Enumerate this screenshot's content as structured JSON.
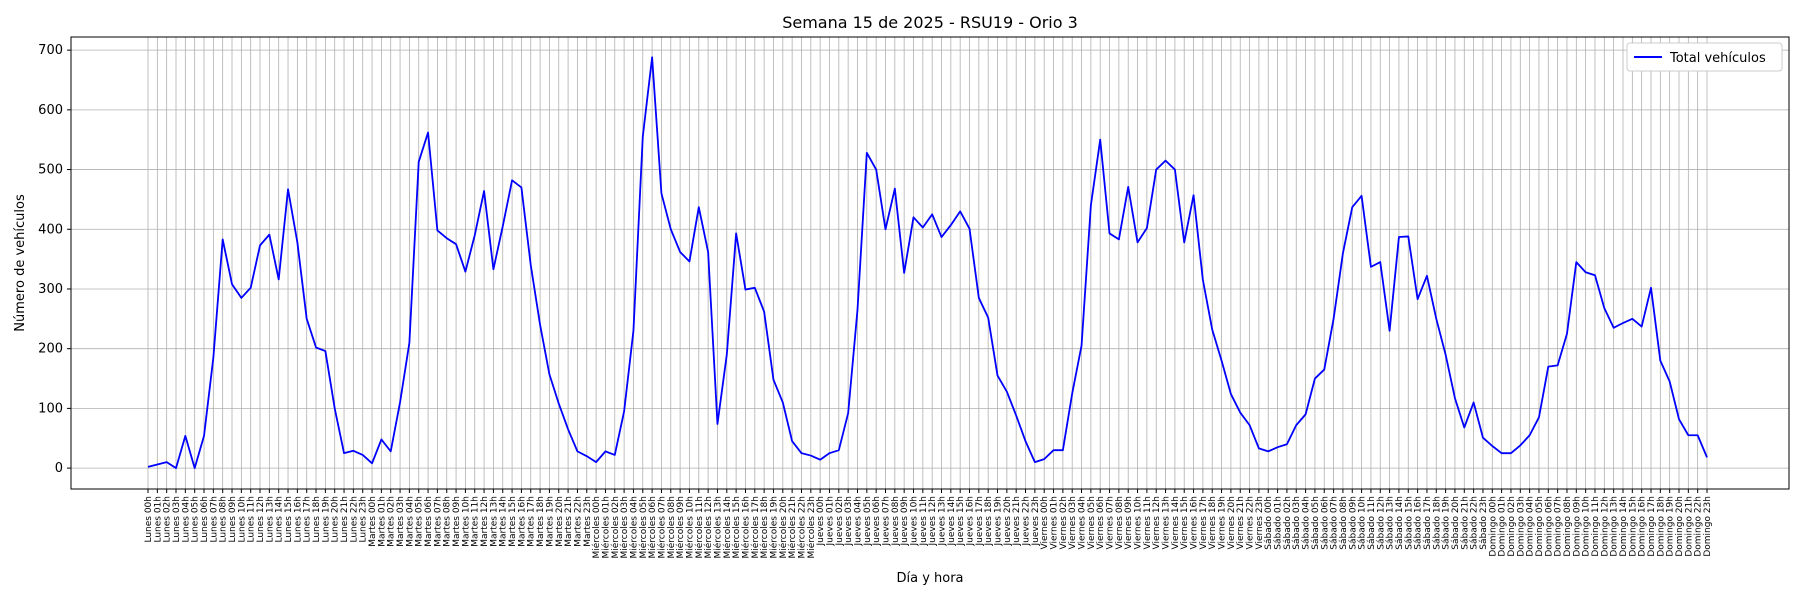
{
  "chart_data": {
    "type": "line",
    "title": "Semana 15 de 2025 - RSU19 - Orio 3",
    "xlabel": "Día y hora",
    "ylabel": "Número de vehículos",
    "ylim": [
      -35,
      722
    ],
    "yticks": [
      0,
      100,
      200,
      300,
      400,
      500,
      600,
      700
    ],
    "grid": true,
    "legend_position": "top-right",
    "days": [
      "Lunes",
      "Martes",
      "Miércoles",
      "Jueves",
      "Viernes",
      "Sábado",
      "Domingo"
    ],
    "hour_labels": [
      "00h",
      "01h",
      "02h",
      "03h",
      "04h",
      "05h",
      "06h",
      "07h",
      "08h",
      "09h",
      "10h",
      "11h",
      "12h",
      "13h",
      "14h",
      "15h",
      "16h",
      "17h",
      "18h",
      "19h",
      "20h",
      "21h",
      "22h",
      "23h"
    ],
    "series": [
      {
        "name": "Total vehículos",
        "color": "#0000ff",
        "values": [
          2,
          6,
          10,
          0,
          54,
          0,
          54,
          185,
          383,
          308,
          285,
          302,
          373,
          391,
          316,
          467,
          378,
          250,
          202,
          196,
          100,
          25,
          29,
          22,
          8,
          48,
          28,
          110,
          210,
          513,
          562,
          398,
          385,
          375,
          329,
          390,
          464,
          333,
          405,
          482,
          470,
          340,
          240,
          157,
          108,
          65,
          28,
          20,
          10,
          28,
          22,
          95,
          230,
          555,
          688,
          460,
          400,
          362,
          346,
          437,
          362,
          74,
          190,
          393,
          299,
          302,
          262,
          148,
          110,
          45,
          25,
          21,
          14,
          25,
          30,
          92,
          265,
          528,
          500,
          400,
          468,
          327,
          420,
          403,
          425,
          387,
          407,
          430,
          401,
          285,
          252,
          155,
          128,
          88,
          45,
          10,
          15,
          30,
          30,
          125,
          205,
          440,
          550,
          393,
          383,
          471,
          378,
          402,
          500,
          515,
          500,
          378,
          457,
          315,
          232,
          180,
          124,
          93,
          72,
          33,
          28,
          35,
          40,
          72,
          90,
          150,
          165,
          250,
          360,
          437,
          456,
          337,
          345,
          230,
          387,
          388,
          283,
          322,
          250,
          190,
          117,
          68,
          110,
          51,
          37,
          25,
          25,
          38,
          55,
          85,
          170,
          172,
          225,
          345,
          328,
          323,
          268,
          235,
          243,
          250,
          237,
          302,
          180,
          145,
          82,
          55,
          55,
          18
        ]
      }
    ]
  }
}
